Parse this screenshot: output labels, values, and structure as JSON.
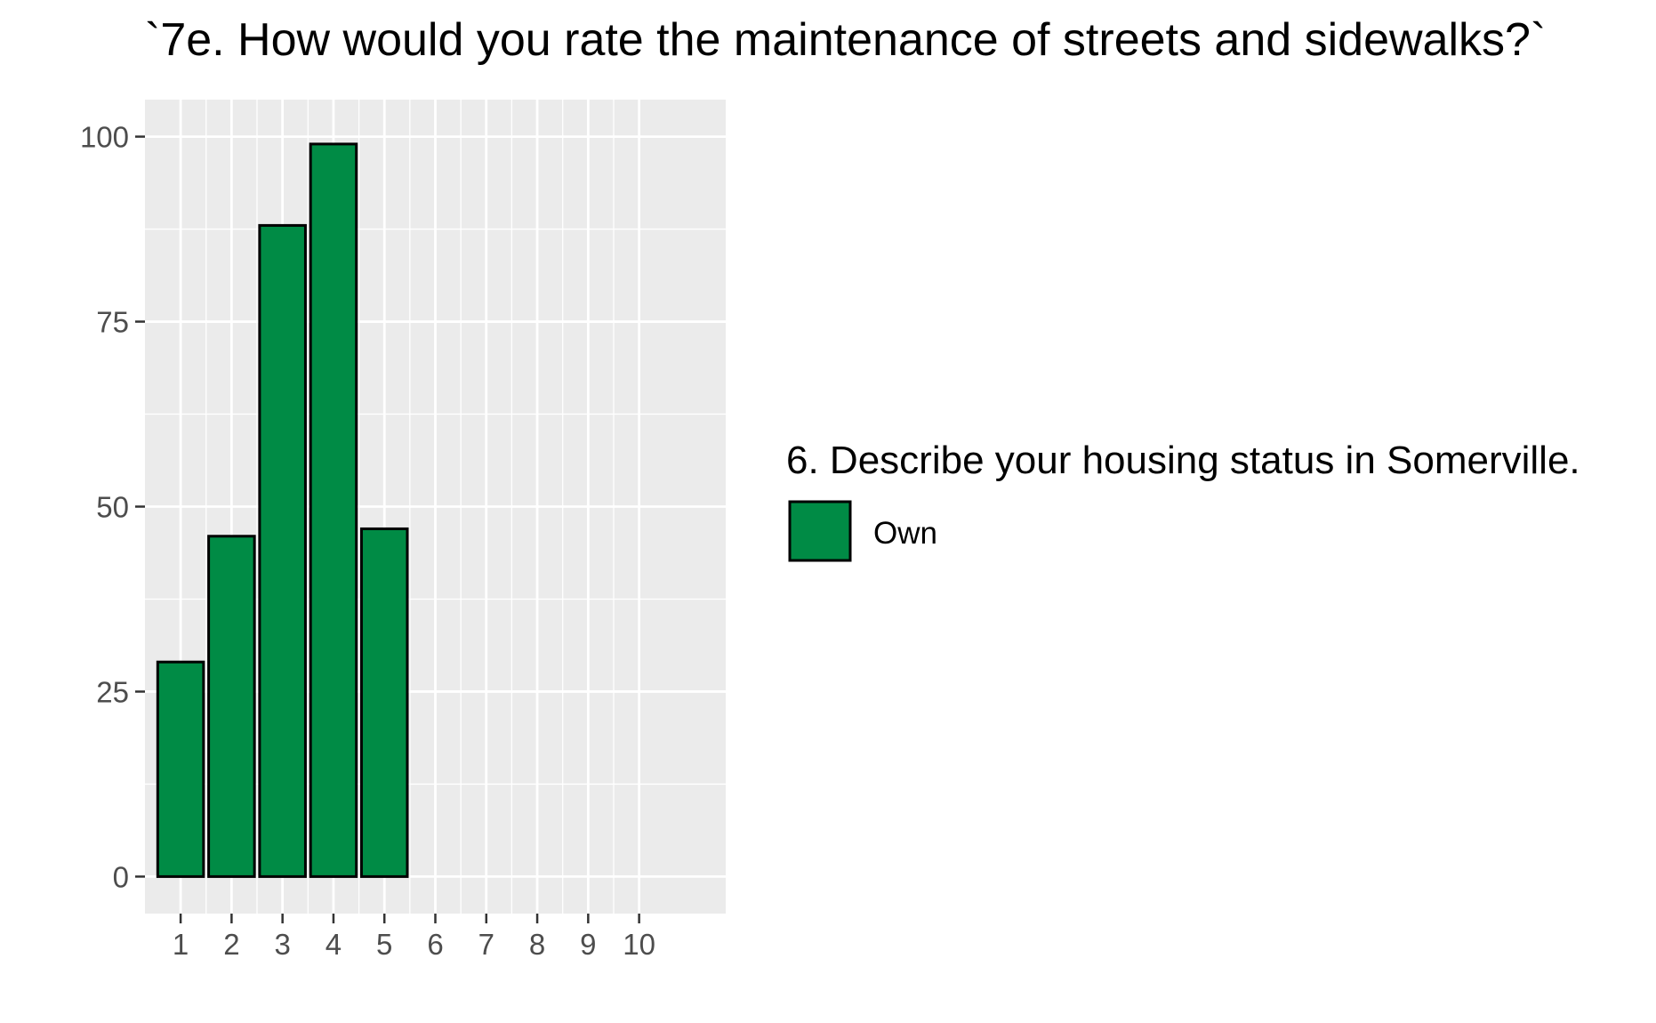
{
  "chart_data": {
    "type": "bar",
    "title": "`7e. How would you rate the maintenance of streets and sidewalks?`",
    "xlabel": "",
    "ylabel": "",
    "x_ticks": [
      "1",
      "2",
      "3",
      "4",
      "5",
      "6",
      "7",
      "8",
      "9",
      "10"
    ],
    "xlim": [
      0.3,
      11.7
    ],
    "y_ticks": [
      0,
      25,
      50,
      75,
      100
    ],
    "y_tick_labels": [
      "0",
      "25",
      "50",
      "75",
      "100"
    ],
    "ylim": [
      -5,
      105
    ],
    "grid": true,
    "series": [
      {
        "name": "Own",
        "x": [
          1,
          2,
          3,
          4,
          5
        ],
        "values": [
          29,
          46,
          88,
          99,
          47
        ],
        "color": "#008B45"
      }
    ],
    "legend": {
      "title": "6. Describe your housing status in Somerville.",
      "placement": "right",
      "entries": [
        "Own"
      ]
    }
  },
  "colors": {
    "panel_background": "#EBEBEB",
    "grid_line": "#FFFFFF",
    "bar_fill": "#008B45",
    "bar_outline": "#000000",
    "tick_text": "#4D4D4D"
  }
}
